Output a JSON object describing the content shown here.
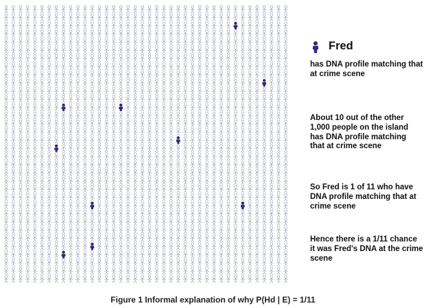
{
  "legend": {
    "name": "Fred",
    "icon": "person-icon-highlighted"
  },
  "texts": {
    "fred_desc": "has DNA profile matching that at crime scene",
    "others": "About 10 out of the other 1,000 people on the island has DNA profile matching that at crime scene",
    "one_of_11": "So Fred is 1 of 11 who have DNA profile matching that at crime scene",
    "hence": "Hence there is a 1/11 chance it was Fred's DNA at the crime scene"
  },
  "caption": "Figure 1 Informal explanation of why P(Hd | E) = 1/11",
  "grid": {
    "columns": 40,
    "rows": 34
  },
  "highlighted": [
    {
      "row": 2,
      "col": 32
    },
    {
      "row": 9,
      "col": 36
    },
    {
      "row": 12,
      "col": 8
    },
    {
      "row": 12,
      "col": 16
    },
    {
      "row": 16,
      "col": 24
    },
    {
      "row": 17,
      "col": 7
    },
    {
      "row": 24,
      "col": 12
    },
    {
      "row": 24,
      "col": 33
    },
    {
      "row": 29,
      "col": 12
    },
    {
      "row": 30,
      "col": 8
    }
  ],
  "colors": {
    "person": "#9aa3b5",
    "highlight": "#2e2a78"
  }
}
